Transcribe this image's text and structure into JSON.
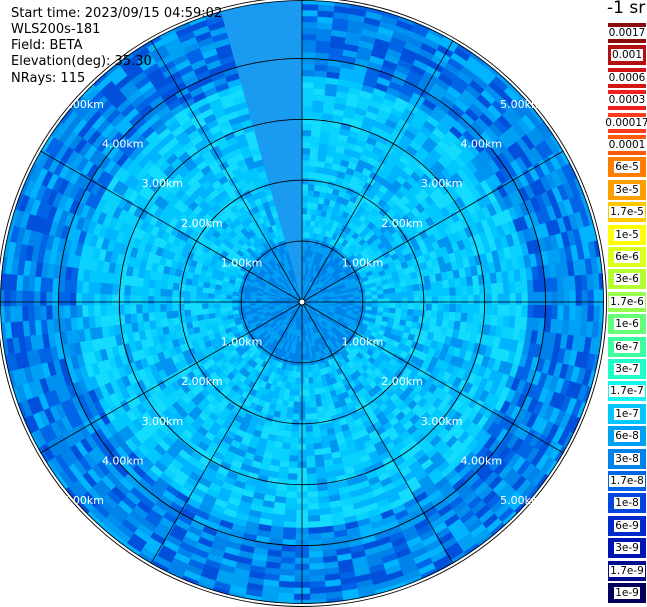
{
  "header": {
    "start_time": "Start time: 2023/09/15 04:59:02",
    "instrument": "WLS200s-181",
    "field": "Field: BETA",
    "elevation": "Elevation(deg): 35.30",
    "nrays": "NRays: 115"
  },
  "colorbar": {
    "unit": "-1 sr",
    "items": [
      {
        "label": "0.0017",
        "color": "#8c0a0a"
      },
      {
        "label": "0.001",
        "color": "#b40f0f"
      },
      {
        "label": "0.0006",
        "color": "#d21414"
      },
      {
        "label": "0.0003",
        "color": "#f01e1e"
      },
      {
        "label": "0.00017",
        "color": "#ff3c1e"
      },
      {
        "label": "0.0001",
        "color": "#ff5a0a"
      },
      {
        "label": "6e-5",
        "color": "#ff7d00"
      },
      {
        "label": "3e-5",
        "color": "#ffa000"
      },
      {
        "label": "1.7e-5",
        "color": "#ffc800"
      },
      {
        "label": "1e-5",
        "color": "#ffff00"
      },
      {
        "label": "6e-6",
        "color": "#dcff1e"
      },
      {
        "label": "3e-6",
        "color": "#b4ff32"
      },
      {
        "label": "1.7e-6",
        "color": "#96ff50"
      },
      {
        "label": "1e-6",
        "color": "#64ff78"
      },
      {
        "label": "6e-7",
        "color": "#3cffa0"
      },
      {
        "label": "3e-7",
        "color": "#1effc8"
      },
      {
        "label": "1.7e-7",
        "color": "#14f5f0"
      },
      {
        "label": "1e-7",
        "color": "#00c8ff"
      },
      {
        "label": "6e-8",
        "color": "#00a0f5"
      },
      {
        "label": "3e-8",
        "color": "#0082eb"
      },
      {
        "label": "1.7e-8",
        "color": "#0064e6"
      },
      {
        "label": "1e-8",
        "color": "#0046dc"
      },
      {
        "label": "6e-9",
        "color": "#0028cd"
      },
      {
        "label": "3e-9",
        "color": "#0014b4"
      },
      {
        "label": "1.7e-9",
        "color": "#000a8c"
      },
      {
        "label": "1e-9",
        "color": "#00005a"
      }
    ]
  },
  "chart_data": {
    "type": "heatmap",
    "projection": "polar PPI",
    "field": "BETA",
    "elevation_deg": 35.3,
    "n_rays": 115,
    "max_range_km": 5.9,
    "range_rings_km": [
      1,
      2,
      3,
      4,
      5
    ],
    "ring_labels": [
      "1.00km",
      "2.00km",
      "3.00km",
      "4.00km",
      "5.00km"
    ],
    "spokes_deg_step": 30,
    "data_gap_azimuth_deg": [
      345,
      360
    ],
    "inner_value_range": [
      1e-07,
      1.7e-07
    ],
    "outer_value_range": [
      6e-09,
      1e-07
    ],
    "colors": {
      "inner": [
        "#00c8ff",
        "#0ad2ff",
        "#00b4ff",
        "#14dcff"
      ],
      "outer": [
        "#00a0f5",
        "#0082eb",
        "#0064e6",
        "#00b4ff",
        "#0090f0",
        "#0050dc"
      ]
    }
  }
}
